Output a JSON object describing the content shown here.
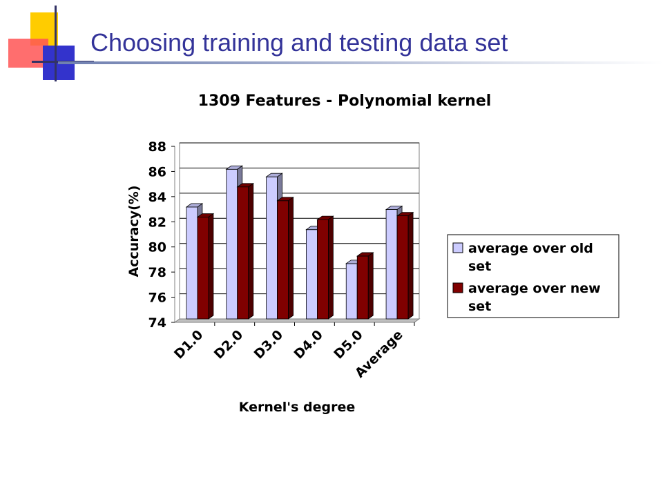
{
  "slide": {
    "title": "Choosing training and testing data set"
  },
  "colors": {
    "title": "#333399",
    "series_old": "#ccccff",
    "series_new": "#800000",
    "deco_yellow": "#ffcc00",
    "deco_red": "#ff3333",
    "deco_blue": "#3333cc"
  },
  "chart_data": {
    "type": "bar",
    "title": "1309 Features - Polynomial kernel",
    "xlabel": "Kernel's degree",
    "ylabel": "Accuracy(%)",
    "ylim": [
      74,
      88
    ],
    "yticks": [
      74,
      76,
      78,
      80,
      82,
      84,
      86,
      88
    ],
    "grid": true,
    "legend_position": "right",
    "style": "3d-clustered-bar",
    "categories": [
      "D1.0",
      "D2.0",
      "D3.0",
      "D4.0",
      "D5.0",
      "Average"
    ],
    "series": [
      {
        "name": "average over old set",
        "color": "#ccccff",
        "values": [
          82.9,
          85.9,
          85.3,
          81.1,
          78.4,
          82.7
        ]
      },
      {
        "name": "average over new set",
        "color": "#800000",
        "values": [
          82.1,
          84.5,
          83.4,
          81.9,
          79.0,
          82.2
        ]
      }
    ],
    "legend_lines": [
      [
        "average over old",
        "set"
      ],
      [
        "average over new",
        "set"
      ]
    ]
  }
}
